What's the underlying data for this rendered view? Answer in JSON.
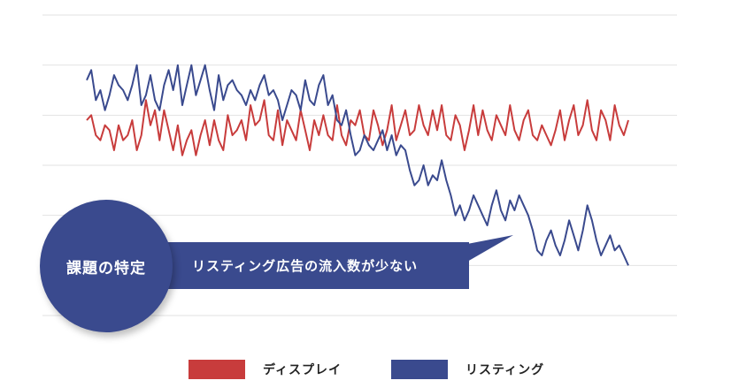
{
  "callout": {
    "badge": "課題の特定",
    "message": "リスティング広告の流入数が少ない"
  },
  "chart_data": {
    "type": "line",
    "title": "",
    "xlabel": "",
    "ylabel": "",
    "grid": true,
    "ylim": [
      0,
      6
    ],
    "legend_position": "bottom",
    "x": [
      1,
      2,
      3,
      4,
      5,
      6,
      7,
      8,
      9,
      10,
      11,
      12,
      13,
      14,
      15,
      16,
      17,
      18,
      19,
      20,
      21,
      22,
      23,
      24,
      25,
      26,
      27,
      28,
      29,
      30,
      31,
      32,
      33,
      34,
      35,
      36,
      37,
      38,
      39,
      40,
      41,
      42,
      43,
      44,
      45,
      46,
      47,
      48,
      49,
      50,
      51,
      52,
      53,
      54,
      55,
      56,
      57,
      58,
      59,
      60,
      61,
      62,
      63,
      64,
      65,
      66,
      67,
      68,
      69,
      70,
      71,
      72,
      73,
      74,
      75,
      76,
      77,
      78,
      79,
      80,
      81,
      82,
      83,
      84,
      85,
      86,
      87,
      88,
      89,
      90,
      91,
      92,
      93,
      94,
      95,
      96,
      97,
      98,
      99,
      100,
      101,
      102,
      103,
      104,
      105,
      106,
      107,
      108,
      109,
      110,
      111,
      112,
      113,
      114,
      115,
      116,
      117,
      118,
      119,
      120
    ],
    "series": [
      {
        "name": "ディスプレイ",
        "color": "#c83c3c",
        "values": [
          3.9,
          4.0,
          3.6,
          3.5,
          3.8,
          3.7,
          3.3,
          3.8,
          3.5,
          3.6,
          3.9,
          3.3,
          3.6,
          4.3,
          3.8,
          4.1,
          3.5,
          4.1,
          3.7,
          3.3,
          3.8,
          3.2,
          3.5,
          3.7,
          3.2,
          3.6,
          3.9,
          3.4,
          3.9,
          3.5,
          3.3,
          4.0,
          3.6,
          3.7,
          3.9,
          3.5,
          4.2,
          3.8,
          3.9,
          4.3,
          3.6,
          3.5,
          4.1,
          3.4,
          3.9,
          3.7,
          3.5,
          4.1,
          3.7,
          3.3,
          3.9,
          3.6,
          4.0,
          3.6,
          3.5,
          4.2,
          3.6,
          3.4,
          3.9,
          3.8,
          4.1,
          3.6,
          3.5,
          4.1,
          3.8,
          3.4,
          3.7,
          4.2,
          3.5,
          3.8,
          4.1,
          3.6,
          3.7,
          4.2,
          3.8,
          3.6,
          4.1,
          3.7,
          4.2,
          3.6,
          3.5,
          4.0,
          3.8,
          3.3,
          3.7,
          4.2,
          3.6,
          4.1,
          3.7,
          3.5,
          4.0,
          3.8,
          3.6,
          4.2,
          3.7,
          3.5,
          3.9,
          4.1,
          3.6,
          3.5,
          3.8,
          3.6,
          3.4,
          3.7,
          4.1,
          3.5,
          3.9,
          4.2,
          3.6,
          3.8,
          4.3,
          3.7,
          3.5,
          4.1,
          3.9,
          3.5,
          4.2,
          3.8,
          3.6,
          3.9
        ]
      },
      {
        "name": "リスティング",
        "color": "#3a4a8e",
        "values": [
          4.7,
          4.9,
          4.3,
          4.5,
          4.1,
          4.4,
          4.8,
          4.6,
          4.5,
          4.3,
          4.6,
          5.0,
          4.2,
          4.4,
          4.8,
          4.3,
          4.1,
          4.6,
          4.9,
          4.5,
          5.0,
          4.2,
          4.6,
          5.0,
          4.4,
          4.7,
          5.0,
          4.5,
          4.1,
          4.8,
          4.3,
          4.6,
          4.7,
          4.5,
          4.4,
          4.2,
          4.5,
          4.3,
          4.6,
          4.8,
          4.4,
          4.5,
          4.3,
          3.9,
          4.2,
          4.5,
          4.4,
          4.1,
          4.7,
          4.3,
          4.2,
          4.6,
          4.8,
          4.2,
          4.4,
          3.9,
          3.8,
          4.1,
          3.6,
          3.2,
          3.3,
          3.6,
          3.4,
          3.3,
          3.5,
          3.7,
          3.3,
          3.6,
          3.2,
          3.4,
          3.3,
          2.9,
          2.6,
          2.7,
          3.0,
          2.6,
          2.8,
          2.7,
          3.1,
          2.7,
          2.4,
          2.0,
          2.2,
          1.9,
          2.1,
          2.4,
          2.2,
          2.0,
          1.8,
          2.2,
          2.5,
          2.1,
          1.9,
          2.3,
          2.1,
          2.4,
          2.2,
          2.0,
          1.7,
          1.3,
          1.2,
          1.5,
          1.7,
          1.4,
          1.2,
          1.5,
          1.9,
          1.6,
          1.3,
          1.7,
          2.2,
          1.9,
          1.5,
          1.2,
          1.4,
          1.6,
          1.3,
          1.4,
          1.2,
          1.0
        ]
      }
    ]
  }
}
